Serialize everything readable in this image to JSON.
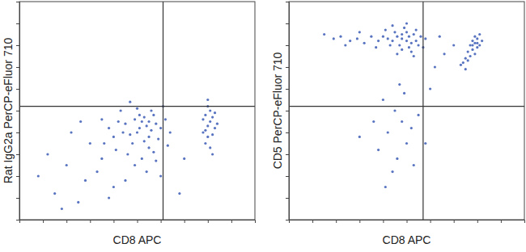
{
  "chart_data": [
    {
      "type": "scatter",
      "x_label": "CD8 APC",
      "y_label": "Rat IgG2a PerCP-eFluor 710",
      "color": "#3b5bb5",
      "xlim": [
        0,
        100
      ],
      "ylim": [
        0,
        100
      ],
      "xticks": [
        10,
        20,
        30,
        40,
        50,
        60,
        70,
        80,
        90
      ],
      "yticks": [
        10,
        20,
        30,
        40,
        50,
        60,
        70,
        80,
        90
      ],
      "tick_labels": false,
      "gate": {
        "x": 61,
        "y": 52
      },
      "x": [
        54,
        52,
        56,
        50,
        58,
        53,
        55,
        49,
        57,
        51,
        47,
        60,
        45,
        53,
        56,
        48,
        62,
        44,
        59,
        50,
        42,
        55,
        46,
        61,
        40,
        52,
        57,
        38,
        64,
        43,
        49,
        36,
        58,
        47,
        41,
        54,
        63,
        35,
        51,
        55,
        80,
        81,
        79,
        82,
        80,
        83,
        78,
        81,
        79,
        82,
        80,
        84,
        78,
        81,
        83,
        79,
        82,
        80,
        20,
        28,
        15,
        33,
        25,
        40,
        12,
        30,
        22,
        38,
        45,
        18,
        60,
        70,
        8,
        35,
        26,
        68
      ],
      "y": [
        43,
        45,
        41,
        40,
        44,
        47,
        38,
        46,
        48,
        42,
        39,
        42,
        44,
        36,
        50,
        35,
        46,
        40,
        37,
        51,
        45,
        33,
        30,
        52,
        38,
        28,
        31,
        42,
        40,
        50,
        25,
        35,
        27,
        54,
        32,
        22,
        34,
        46,
        48,
        45,
        43,
        45,
        41,
        47,
        38,
        42,
        46,
        50,
        35,
        39,
        52,
        44,
        40,
        33,
        49,
        48,
        30,
        55,
        25,
        18,
        12,
        22,
        8,
        15,
        30,
        35,
        40,
        10,
        18,
        5,
        20,
        28,
        20,
        28,
        45,
        12
      ]
    },
    {
      "type": "scatter",
      "x_label": "CD8 APC",
      "y_label": "CD5 PerCP-eFluor 710",
      "color": "#3b5bb5",
      "xlim": [
        0,
        100
      ],
      "ylim": [
        0,
        100
      ],
      "xticks": [
        10,
        20,
        30,
        40,
        50,
        60,
        70,
        80,
        90
      ],
      "yticks": [
        10,
        20,
        30,
        40,
        50,
        60,
        70,
        80,
        90
      ],
      "tick_labels": false,
      "gate": {
        "x": 57,
        "y": 52
      },
      "x": [
        50,
        48,
        52,
        46,
        54,
        50,
        44,
        51,
        47,
        53,
        42,
        55,
        49,
        40,
        56,
        45,
        52,
        38,
        48,
        43,
        57,
        35,
        50,
        32,
        46,
        29,
        54,
        26,
        58,
        22,
        41,
        37,
        19,
        44,
        30,
        53,
        15,
        24,
        48,
        51,
        79,
        80,
        78,
        81,
        79,
        80,
        77,
        82,
        78,
        81,
        76,
        79,
        75,
        74,
        77,
        73,
        76,
        75,
        80,
        78,
        45,
        48,
        42,
        50,
        46,
        52,
        40,
        38,
        55,
        44,
        49,
        36,
        53,
        47,
        30,
        58,
        41,
        60,
        62,
        66,
        70,
        64
      ],
      "y": [
        82,
        83,
        81,
        84,
        82,
        86,
        82,
        79,
        80,
        85,
        83,
        80,
        88,
        84,
        84,
        86,
        77,
        82,
        78,
        80,
        79,
        84,
        90,
        81,
        76,
        83,
        87,
        82,
        83,
        84,
        87,
        79,
        83,
        89,
        86,
        75,
        85,
        80,
        85,
        84,
        81,
        83,
        82,
        80,
        84,
        79,
        80,
        82,
        78,
        85,
        77,
        76,
        74,
        72,
        75,
        71,
        73,
        69,
        81,
        80,
        50,
        45,
        40,
        35,
        28,
        42,
        55,
        32,
        48,
        22,
        58,
        45,
        25,
        62,
        38,
        35,
        15,
        60,
        70,
        76,
        80,
        84
      ]
    }
  ]
}
